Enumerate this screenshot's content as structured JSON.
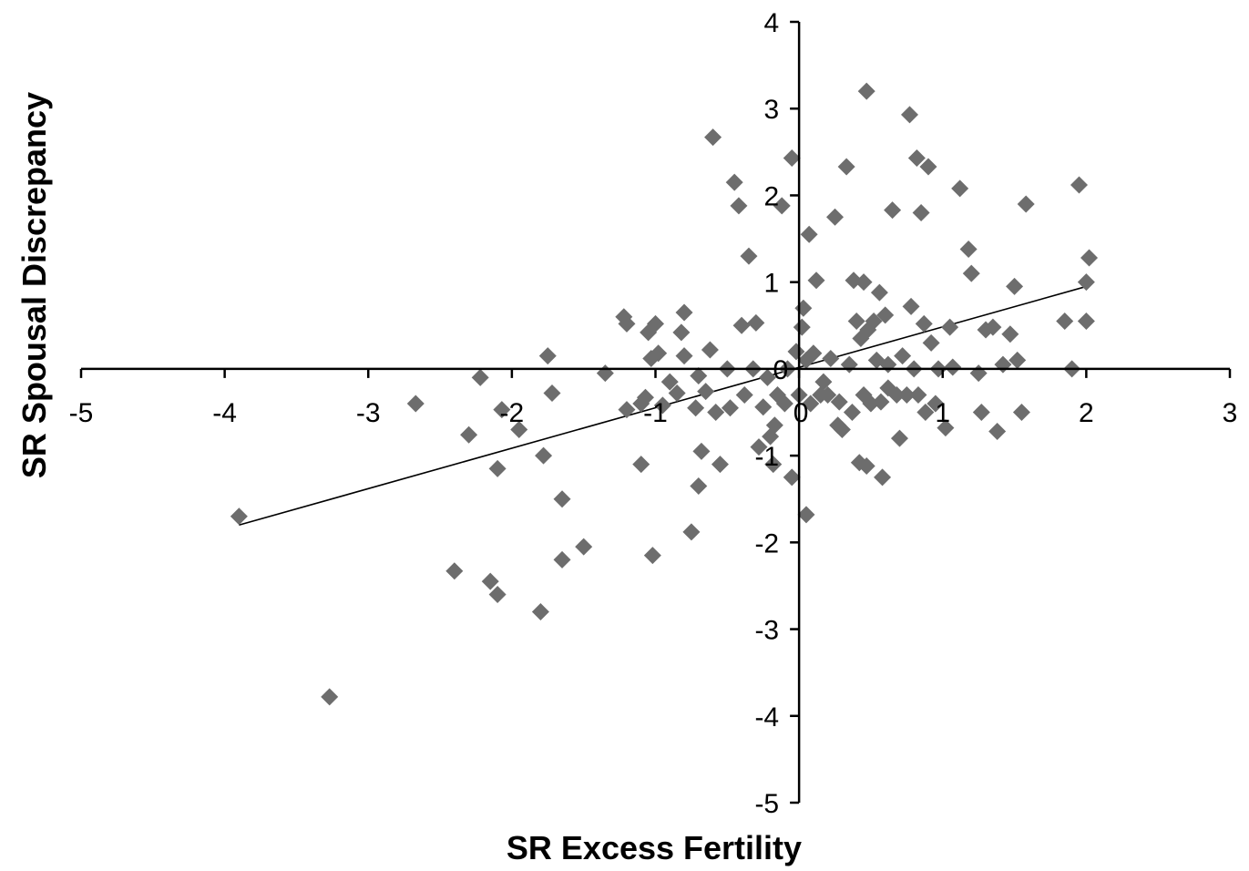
{
  "chart_data": {
    "type": "scatter",
    "xlabel": "SR Excess Fertility",
    "ylabel": "SR Spousal Discrepancy",
    "xlim": [
      -5,
      3
    ],
    "ylim": [
      -5,
      4
    ],
    "x_ticks": [
      "-5",
      "-4",
      "-3",
      "-2",
      "-1",
      "0",
      "1",
      "2",
      "3"
    ],
    "y_ticks": [
      "-5",
      "-4",
      "-3",
      "-2",
      "-1",
      "0",
      "1",
      "2",
      "3",
      "4"
    ],
    "legend": "none",
    "grid": false,
    "marker_color": "#6d6d6d",
    "trendline": {
      "x": [
        -3.9,
        2.0
      ],
      "y": [
        -1.8,
        0.95
      ]
    },
    "points": [
      [
        -3.9,
        -1.7
      ],
      [
        -3.27,
        -3.78
      ],
      [
        -2.67,
        -0.4
      ],
      [
        -2.4,
        -2.33
      ],
      [
        -2.3,
        -0.76
      ],
      [
        -2.22,
        -0.1
      ],
      [
        -2.15,
        -2.45
      ],
      [
        -2.1,
        -2.6
      ],
      [
        -2.1,
        -1.15
      ],
      [
        -2.07,
        -0.47
      ],
      [
        -1.95,
        -0.7
      ],
      [
        -1.8,
        -2.8
      ],
      [
        -1.78,
        -1.0
      ],
      [
        -1.75,
        0.15
      ],
      [
        -1.72,
        -0.28
      ],
      [
        -1.65,
        -1.5
      ],
      [
        -1.65,
        -2.2
      ],
      [
        -1.5,
        -2.05
      ],
      [
        -1.35,
        -0.05
      ],
      [
        -1.22,
        0.6
      ],
      [
        -1.2,
        0.52
      ],
      [
        -1.2,
        -0.47
      ],
      [
        -1.1,
        -0.4
      ],
      [
        -1.1,
        -1.1
      ],
      [
        -1.07,
        -0.33
      ],
      [
        -1.05,
        0.42
      ],
      [
        -1.03,
        0.12
      ],
      [
        -1.02,
        -2.15
      ],
      [
        -1.0,
        0.52
      ],
      [
        -0.98,
        0.18
      ],
      [
        -0.95,
        -0.42
      ],
      [
        -0.9,
        -0.15
      ],
      [
        -0.85,
        -0.28
      ],
      [
        -0.82,
        0.42
      ],
      [
        -0.8,
        0.15
      ],
      [
        -0.8,
        0.65
      ],
      [
        -0.75,
        -1.88
      ],
      [
        -0.72,
        -0.45
      ],
      [
        -0.7,
        -0.08
      ],
      [
        -0.7,
        -1.35
      ],
      [
        -0.68,
        -0.95
      ],
      [
        -0.65,
        -0.26
      ],
      [
        -0.62,
        0.22
      ],
      [
        -0.6,
        2.67
      ],
      [
        -0.58,
        -0.5
      ],
      [
        -0.55,
        -1.1
      ],
      [
        -0.5,
        0.0
      ],
      [
        -0.48,
        -0.45
      ],
      [
        -0.45,
        2.15
      ],
      [
        -0.42,
        1.88
      ],
      [
        -0.4,
        0.5
      ],
      [
        -0.38,
        -0.3
      ],
      [
        -0.35,
        1.3
      ],
      [
        -0.32,
        0.0
      ],
      [
        -0.3,
        0.53
      ],
      [
        -0.28,
        -0.9
      ],
      [
        -0.25,
        -0.44
      ],
      [
        -0.22,
        -0.1
      ],
      [
        -0.2,
        -0.78
      ],
      [
        -0.18,
        -1.1
      ],
      [
        -0.17,
        -0.65
      ],
      [
        -0.15,
        -0.3
      ],
      [
        -0.12,
        1.88
      ],
      [
        -0.1,
        -0.4
      ],
      [
        -0.08,
        0.0
      ],
      [
        -0.05,
        -1.25
      ],
      [
        -0.05,
        2.43
      ],
      [
        -0.02,
        0.2
      ],
      [
        0.0,
        -0.3
      ],
      [
        0.02,
        0.48
      ],
      [
        0.03,
        0.7
      ],
      [
        0.05,
        0.1
      ],
      [
        0.05,
        -1.68
      ],
      [
        0.07,
        1.55
      ],
      [
        0.08,
        -0.4
      ],
      [
        0.1,
        0.18
      ],
      [
        0.12,
        1.02
      ],
      [
        0.15,
        -0.3
      ],
      [
        0.17,
        -0.15
      ],
      [
        0.2,
        -0.3
      ],
      [
        0.22,
        0.12
      ],
      [
        0.25,
        1.75
      ],
      [
        0.27,
        -0.65
      ],
      [
        0.28,
        -0.38
      ],
      [
        0.3,
        -0.7
      ],
      [
        0.33,
        2.33
      ],
      [
        0.35,
        0.05
      ],
      [
        0.37,
        -0.5
      ],
      [
        0.38,
        1.02
      ],
      [
        0.4,
        0.55
      ],
      [
        0.42,
        -1.08
      ],
      [
        0.43,
        0.35
      ],
      [
        0.45,
        -0.3
      ],
      [
        0.45,
        1.0
      ],
      [
        0.47,
        -1.12
      ],
      [
        0.47,
        3.2
      ],
      [
        0.48,
        0.45
      ],
      [
        0.5,
        -0.4
      ],
      [
        0.52,
        0.55
      ],
      [
        0.54,
        0.1
      ],
      [
        0.56,
        0.88
      ],
      [
        0.57,
        -0.38
      ],
      [
        0.58,
        -1.25
      ],
      [
        0.6,
        0.62
      ],
      [
        0.62,
        -0.22
      ],
      [
        0.62,
        0.05
      ],
      [
        0.65,
        1.83
      ],
      [
        0.68,
        -0.3
      ],
      [
        0.7,
        -0.8
      ],
      [
        0.72,
        0.15
      ],
      [
        0.75,
        -0.3
      ],
      [
        0.77,
        2.93
      ],
      [
        0.78,
        0.72
      ],
      [
        0.8,
        0.0
      ],
      [
        0.82,
        2.43
      ],
      [
        0.83,
        -0.3
      ],
      [
        0.85,
        1.8
      ],
      [
        0.87,
        0.52
      ],
      [
        0.88,
        -0.5
      ],
      [
        0.9,
        2.33
      ],
      [
        0.92,
        0.3
      ],
      [
        0.95,
        -0.4
      ],
      [
        0.97,
        0.0
      ],
      [
        1.02,
        -0.68
      ],
      [
        1.05,
        0.48
      ],
      [
        1.07,
        0.02
      ],
      [
        1.12,
        2.08
      ],
      [
        1.18,
        1.38
      ],
      [
        1.2,
        1.1
      ],
      [
        1.25,
        -0.05
      ],
      [
        1.27,
        -0.5
      ],
      [
        1.3,
        0.45
      ],
      [
        1.35,
        0.48
      ],
      [
        1.38,
        -0.72
      ],
      [
        1.42,
        0.05
      ],
      [
        1.47,
        0.4
      ],
      [
        1.5,
        0.95
      ],
      [
        1.52,
        0.1
      ],
      [
        1.55,
        -0.5
      ],
      [
        1.58,
        1.9
      ],
      [
        1.85,
        0.55
      ],
      [
        1.9,
        0.0
      ],
      [
        1.95,
        2.12
      ],
      [
        2.0,
        0.55
      ],
      [
        2.0,
        1.0
      ],
      [
        2.02,
        1.28
      ]
    ]
  }
}
